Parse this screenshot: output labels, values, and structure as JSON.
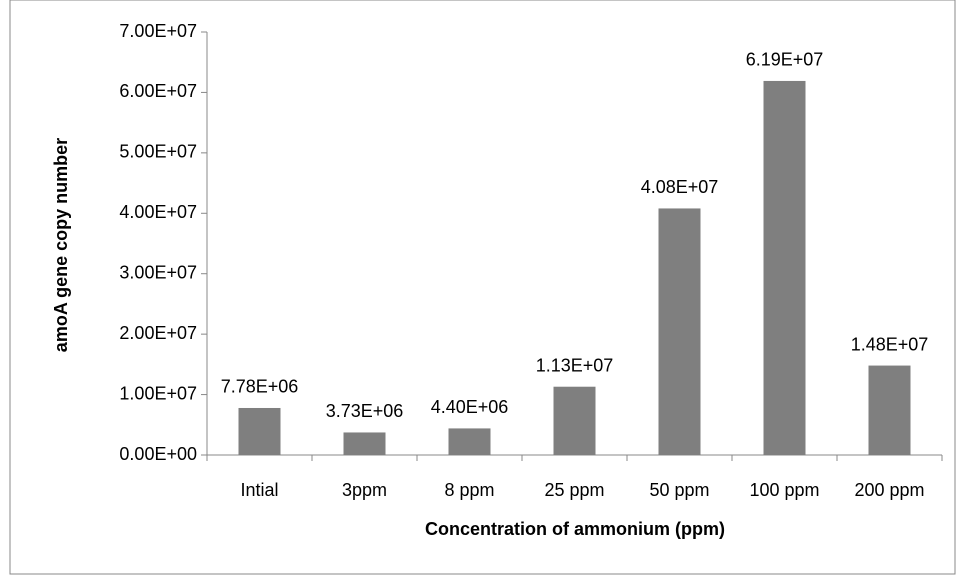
{
  "chart_data": {
    "type": "bar",
    "xlabel": "Concentration of ammonium (ppm)",
    "ylabel": "amoA gene copy number",
    "categories": [
      "Intial",
      "3ppm",
      "8 ppm",
      "25 ppm",
      "50 ppm",
      "100 ppm",
      "200 ppm"
    ],
    "values": [
      7780000,
      3730000,
      4400000,
      11300000,
      40800000,
      61900000,
      14800000
    ],
    "value_labels": [
      "7.78E+06",
      "3.73E+06",
      "4.40E+06",
      "1.13E+07",
      "4.08E+07",
      "6.19E+07",
      "1.48E+07"
    ],
    "color": "#7f7f7f",
    "ylim": [
      0,
      70000000
    ],
    "yticks": [
      {
        "value": 0,
        "label": "0.00E+00"
      },
      {
        "value": 10000000,
        "label": "1.00E+07"
      },
      {
        "value": 20000000,
        "label": "2.00E+07"
      },
      {
        "value": 30000000,
        "label": "3.00E+07"
      },
      {
        "value": 40000000,
        "label": "4.00E+07"
      },
      {
        "value": 50000000,
        "label": "5.00E+07"
      },
      {
        "value": 60000000,
        "label": "6.00E+07"
      },
      {
        "value": 70000000,
        "label": "7.00E+07"
      }
    ],
    "grid": false
  }
}
